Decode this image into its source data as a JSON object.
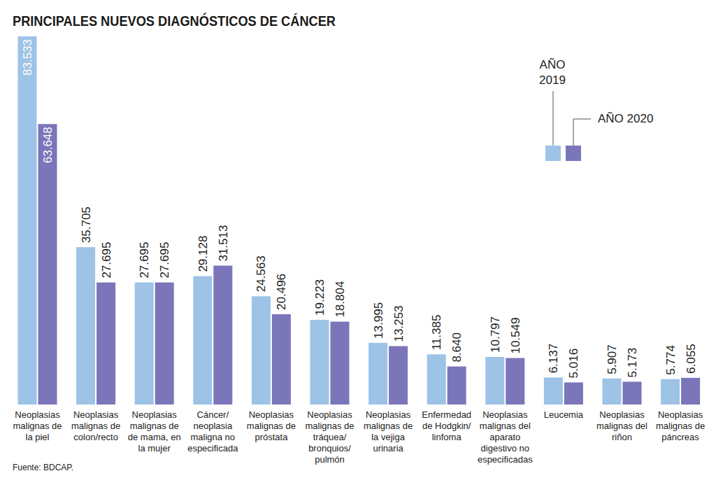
{
  "chart_data": {
    "type": "bar",
    "title": "PRINCIPALES NUEVOS DIAGNÓSTICOS DE CÁNCER",
    "source": "Fuente: BDCAP.",
    "categories": [
      "Neoplasias malignas de la piel",
      "Neoplasias malignas de colon/recto",
      "Neoplasias malignas de de mama, en la mujer",
      "Cáncer/ neoplasia maligna no especificada",
      "Neoplasias malignas de próstata",
      "Neoplasias malignas de tráquea/ bronquios/ pulmón",
      "Neoplasias malignas de la vejiga urinaria",
      "Enfermedad de Hodgkin/ linfoma",
      "Neoplasias malignas del aparato digestivo no especificadas",
      "Leucemia",
      "Neoplasias malignas del riñon",
      "Neoplasias malignas de páncreas"
    ],
    "series": [
      {
        "name": "AÑO 2019",
        "color": "#9dc3e6",
        "values": [
          83533,
          35705,
          27695,
          29128,
          24563,
          19223,
          13995,
          11385,
          10797,
          6137,
          5907,
          5774
        ],
        "value_labels": [
          "83.533",
          "35.705",
          "27.695",
          "29.128",
          "24.563",
          "19.223",
          "13.995",
          "11.385",
          "10.797",
          "6.137",
          "5.907",
          "5.774"
        ]
      },
      {
        "name": "AÑO 2020",
        "color": "#7b76b9",
        "values": [
          63648,
          27695,
          27695,
          31513,
          20496,
          18804,
          13253,
          8640,
          10549,
          5016,
          5173,
          6055
        ],
        "value_labels": [
          "63.648",
          "27.695",
          "27.695",
          "31.513",
          "20.496",
          "18.804",
          "13.253",
          "8.640",
          "10.549",
          "5.016",
          "5.173",
          "6.055"
        ]
      }
    ],
    "ylim": [
      0,
      83533
    ],
    "tick_labels": "x",
    "grid": false,
    "data_labels": true,
    "legend": "top-right"
  }
}
